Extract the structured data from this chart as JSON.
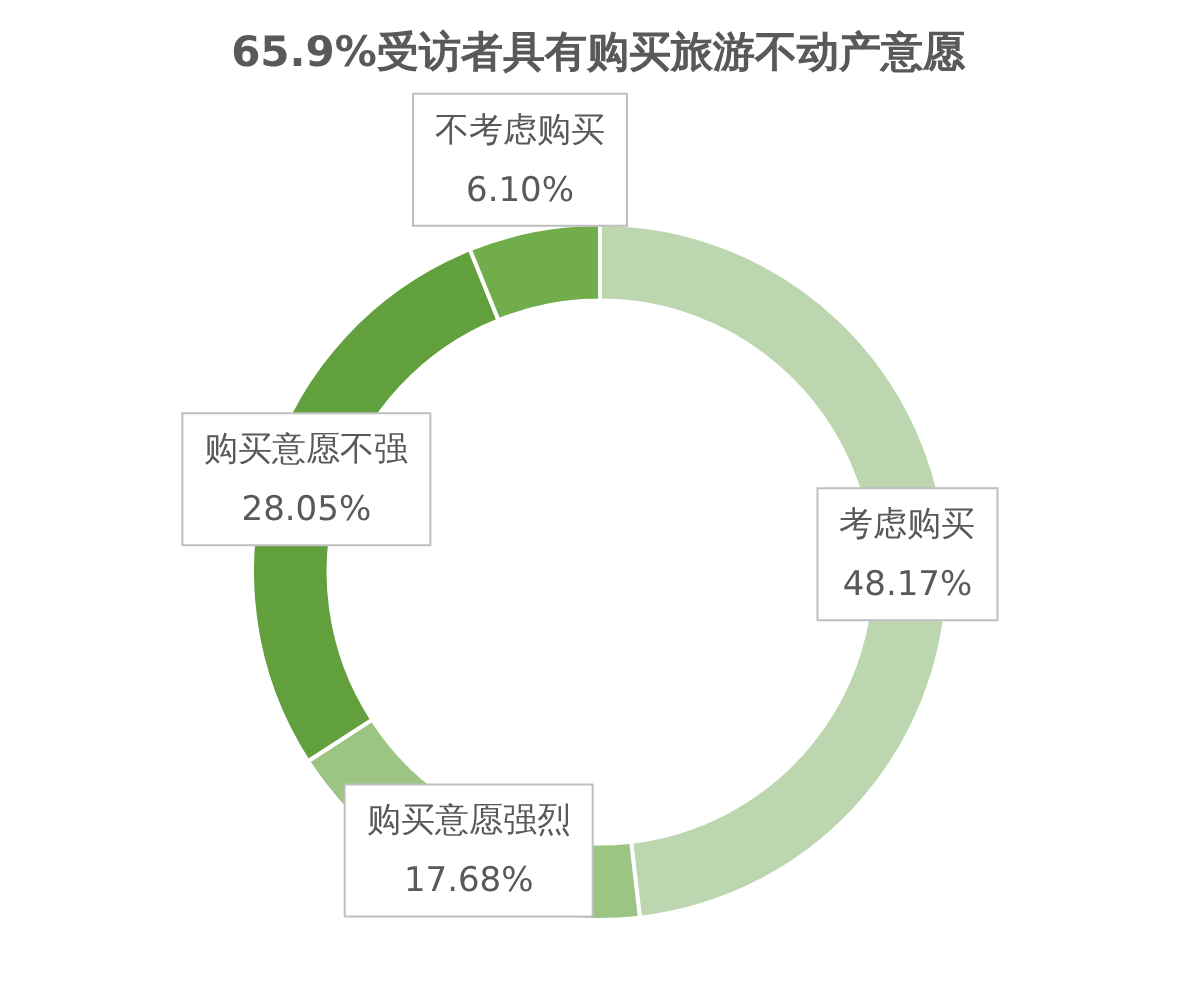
{
  "chart_data": {
    "type": "donut",
    "title": "65.9%受访者具有购买旅游不动产意愿",
    "categories": [
      "考虑购买",
      "购买意愿强烈",
      "购买意愿不强",
      "不考虑购买"
    ],
    "values": [
      48.17,
      17.68,
      28.05,
      6.1
    ],
    "value_labels": [
      "48.17%",
      "17.68%",
      "28.05%",
      "6.10%"
    ],
    "colors": [
      "#bcd7b0",
      "#9cc584",
      "#62a03e",
      "#72ad4c"
    ],
    "legend": false
  }
}
